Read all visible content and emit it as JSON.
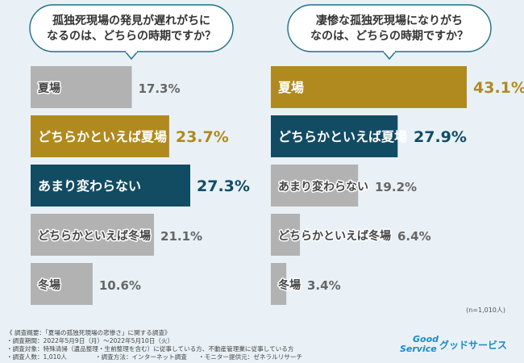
{
  "colors": {
    "background": "#e9f1f6",
    "gold": "#b08a1f",
    "teal": "#124c63",
    "gray": "#b2b2b2",
    "bubble_border": "#1e6f8b",
    "text_dark": "#333333",
    "text_gray": "#666666",
    "brand_blue": "#1e88c7"
  },
  "chart_data": [
    {
      "type": "bar",
      "title": "孤独死現場の発見が遅れがちになるのは、どちらの時期ですか？",
      "title_lines": [
        "孤独死現場の発見が遅れがちに",
        "なるのは、どちらの時期ですか？"
      ],
      "categories": [
        "夏場",
        "どちらかといえば夏場",
        "あまり変わらない",
        "どちらかといえば冬場",
        "冬場"
      ],
      "values": [
        17.3,
        23.7,
        27.3,
        21.1,
        10.6
      ],
      "value_labels": [
        "17.3%",
        "23.7%",
        "27.3%",
        "21.1%",
        "10.6%"
      ],
      "colors": [
        "gray",
        "gold",
        "teal",
        "gray",
        "gray"
      ],
      "xlim": [
        0,
        27.3
      ]
    },
    {
      "type": "bar",
      "title": "凄惨な孤独死現場になりがちなのは、どちらの時期ですか？",
      "title_lines": [
        "凄惨な孤独死現場になりがち",
        "なのは、どちらの時期ですか？"
      ],
      "categories": [
        "夏場",
        "どちらかといえば夏場",
        "あまり変わらない",
        "どちらかといえば冬場",
        "冬場"
      ],
      "values": [
        43.1,
        27.9,
        19.2,
        6.4,
        3.4
      ],
      "value_labels": [
        "43.1%",
        "27.9%",
        "19.2%",
        "6.4%",
        "3.4%"
      ],
      "colors": [
        "gold",
        "teal",
        "gray",
        "gray",
        "gray"
      ],
      "xlim": [
        0,
        43.1
      ]
    }
  ],
  "sample_note": "(n=1,010人)",
  "footer": {
    "lines": [
      "《 調査概要：「夏場の孤独死現場の悲惨さ」に関する調査》",
      "・調査期間：2022年5月9日（月）～2022年5月10日（火）",
      "・調査対象：特殊清掃（遺品整理・生前整理を含む）に従事している方、不動産管理業に従事している方"
    ],
    "last_line": [
      "・調査人数：1,010人",
      "・調査方法：インターネット調査",
      "・モニター提供元：ゼネラルリサーチ"
    ]
  },
  "logo": {
    "line1": "Good",
    "line2": "Service",
    "name": "グッドサービス"
  }
}
